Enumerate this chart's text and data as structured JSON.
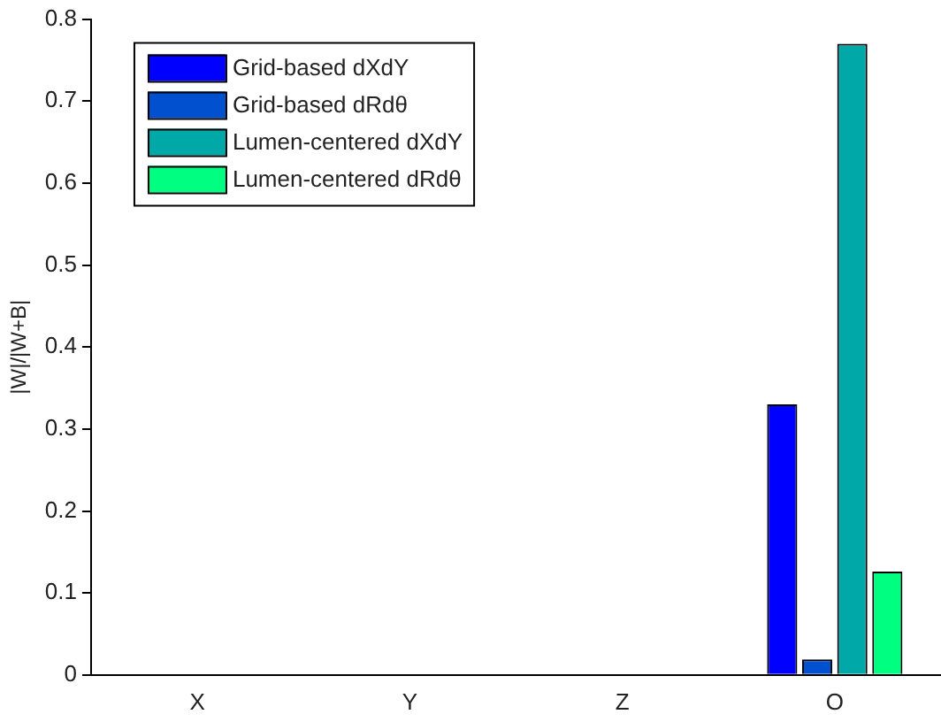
{
  "chart_data": {
    "type": "bar",
    "ylabel": "|W|/|W+B|",
    "categories": [
      "X",
      "Y",
      "Z",
      "O"
    ],
    "series": [
      {
        "name": "Grid-based dXdY",
        "color": "#0000ff",
        "values": [
          0,
          0,
          0,
          0.33
        ]
      },
      {
        "name": "Grid-based dRdθ",
        "color": "#0050d0",
        "values": [
          0,
          0,
          0,
          0.019
        ]
      },
      {
        "name": "Lumen-centered dXdY",
        "color": "#00a8a8",
        "values": [
          0,
          0,
          0,
          0.77
        ]
      },
      {
        "name": "Lumen-centered dRdθ",
        "color": "#00ff80",
        "values": [
          0,
          0,
          0,
          0.126
        ]
      }
    ],
    "ylim": [
      0,
      0.8
    ],
    "yticks": [
      0,
      0.1,
      0.2,
      0.3,
      0.4,
      0.5,
      0.6,
      0.7,
      0.8
    ],
    "grid": false,
    "legend": "top left"
  }
}
